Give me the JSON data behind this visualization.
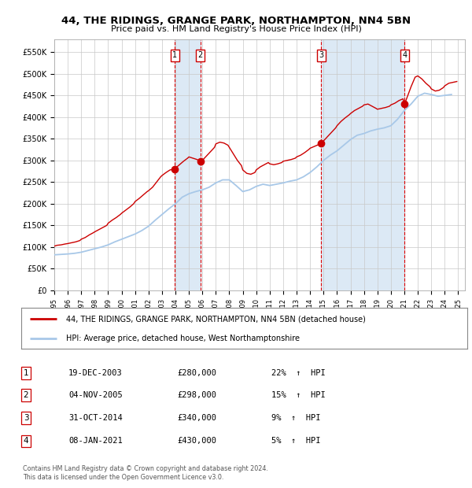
{
  "title": "44, THE RIDINGS, GRANGE PARK, NORTHAMPTON, NN4 5BN",
  "subtitle": "Price paid vs. HM Land Registry's House Price Index (HPI)",
  "hpi_color": "#a8c8e8",
  "price_color": "#cc0000",
  "marker_color": "#cc0000",
  "bg_color": "#ffffff",
  "grid_color": "#c8c8c8",
  "panel_color": "#dce9f5",
  "xlim_start": 1995.0,
  "xlim_end": 2025.5,
  "ylim_min": 0,
  "ylim_max": 580000,
  "yticks": [
    0,
    50000,
    100000,
    150000,
    200000,
    250000,
    300000,
    350000,
    400000,
    450000,
    500000,
    550000
  ],
  "ytick_labels": [
    "£0",
    "£50K",
    "£100K",
    "£150K",
    "£200K",
    "£250K",
    "£300K",
    "£350K",
    "£400K",
    "£450K",
    "£500K",
    "£550K"
  ],
  "transactions": [
    {
      "num": 1,
      "date_label": "19-DEC-2003",
      "x": 2003.96,
      "price": 280000,
      "pct": "22%",
      "direction": "↑"
    },
    {
      "num": 2,
      "date_label": "04-NOV-2005",
      "x": 2005.84,
      "price": 298000,
      "pct": "15%",
      "direction": "↑"
    },
    {
      "num": 3,
      "date_label": "31-OCT-2014",
      "x": 2014.83,
      "price": 340000,
      "pct": "9%",
      "direction": "↑"
    },
    {
      "num": 4,
      "date_label": "08-JAN-2021",
      "x": 2021.02,
      "price": 430000,
      "pct": "5%",
      "direction": "↑"
    }
  ],
  "legend_label_price": "44, THE RIDINGS, GRANGE PARK, NORTHAMPTON, NN4 5BN (detached house)",
  "legend_label_hpi": "HPI: Average price, detached house, West Northamptonshire",
  "footer1": "Contains HM Land Registry data © Crown copyright and database right 2024.",
  "footer2": "This data is licensed under the Open Government Licence v3.0.",
  "hpi_data": [
    [
      1995.0,
      82000
    ],
    [
      1995.5,
      83000
    ],
    [
      1996.0,
      84000
    ],
    [
      1996.5,
      85500
    ],
    [
      1997.0,
      88000
    ],
    [
      1997.5,
      92000
    ],
    [
      1998.0,
      96000
    ],
    [
      1998.5,
      100000
    ],
    [
      1999.0,
      105000
    ],
    [
      1999.5,
      112000
    ],
    [
      2000.0,
      118000
    ],
    [
      2000.5,
      124000
    ],
    [
      2001.0,
      130000
    ],
    [
      2001.5,
      138000
    ],
    [
      2002.0,
      148000
    ],
    [
      2002.5,
      162000
    ],
    [
      2003.0,
      175000
    ],
    [
      2003.5,
      188000
    ],
    [
      2004.0,
      200000
    ],
    [
      2004.5,
      215000
    ],
    [
      2005.0,
      223000
    ],
    [
      2005.5,
      228000
    ],
    [
      2006.0,
      232000
    ],
    [
      2006.5,
      238000
    ],
    [
      2007.0,
      248000
    ],
    [
      2007.5,
      255000
    ],
    [
      2008.0,
      255000
    ],
    [
      2008.5,
      242000
    ],
    [
      2009.0,
      228000
    ],
    [
      2009.5,
      232000
    ],
    [
      2010.0,
      240000
    ],
    [
      2010.5,
      245000
    ],
    [
      2011.0,
      242000
    ],
    [
      2011.5,
      245000
    ],
    [
      2012.0,
      248000
    ],
    [
      2012.5,
      252000
    ],
    [
      2013.0,
      255000
    ],
    [
      2013.5,
      262000
    ],
    [
      2014.0,
      272000
    ],
    [
      2014.5,
      285000
    ],
    [
      2015.0,
      300000
    ],
    [
      2015.5,
      312000
    ],
    [
      2016.0,
      322000
    ],
    [
      2016.5,
      335000
    ],
    [
      2017.0,
      348000
    ],
    [
      2017.5,
      358000
    ],
    [
      2018.0,
      362000
    ],
    [
      2018.5,
      368000
    ],
    [
      2019.0,
      372000
    ],
    [
      2019.5,
      375000
    ],
    [
      2020.0,
      380000
    ],
    [
      2020.5,
      395000
    ],
    [
      2021.0,
      415000
    ],
    [
      2021.5,
      430000
    ],
    [
      2022.0,
      448000
    ],
    [
      2022.5,
      455000
    ],
    [
      2023.0,
      452000
    ],
    [
      2023.5,
      448000
    ],
    [
      2024.0,
      450000
    ],
    [
      2024.5,
      452000
    ]
  ],
  "price_data": [
    [
      1995.0,
      102000
    ],
    [
      1995.2,
      104000
    ],
    [
      1995.5,
      105000
    ],
    [
      1995.8,
      107000
    ],
    [
      1996.0,
      108000
    ],
    [
      1996.3,
      110000
    ],
    [
      1996.6,
      112000
    ],
    [
      1996.9,
      115000
    ],
    [
      1997.0,
      118000
    ],
    [
      1997.3,
      122000
    ],
    [
      1997.6,
      128000
    ],
    [
      1997.9,
      133000
    ],
    [
      1998.0,
      135000
    ],
    [
      1998.3,
      140000
    ],
    [
      1998.6,
      145000
    ],
    [
      1998.9,
      150000
    ],
    [
      1999.0,
      155000
    ],
    [
      1999.3,
      162000
    ],
    [
      1999.6,
      168000
    ],
    [
      1999.9,
      175000
    ],
    [
      2000.0,
      178000
    ],
    [
      2000.3,
      185000
    ],
    [
      2000.6,
      192000
    ],
    [
      2000.9,
      200000
    ],
    [
      2001.0,
      205000
    ],
    [
      2001.3,
      212000
    ],
    [
      2001.6,
      220000
    ],
    [
      2001.9,
      228000
    ],
    [
      2002.0,
      230000
    ],
    [
      2002.3,
      238000
    ],
    [
      2002.6,
      250000
    ],
    [
      2002.9,
      262000
    ],
    [
      2003.0,
      265000
    ],
    [
      2003.3,
      272000
    ],
    [
      2003.6,
      278000
    ],
    [
      2003.96,
      280000
    ],
    [
      2004.0,
      282000
    ],
    [
      2004.3,
      290000
    ],
    [
      2004.6,
      298000
    ],
    [
      2004.9,
      305000
    ],
    [
      2005.0,
      308000
    ],
    [
      2005.3,
      305000
    ],
    [
      2005.6,
      302000
    ],
    [
      2005.84,
      298000
    ],
    [
      2006.0,
      300000
    ],
    [
      2006.3,
      310000
    ],
    [
      2006.6,
      320000
    ],
    [
      2006.9,
      330000
    ],
    [
      2007.0,
      338000
    ],
    [
      2007.3,
      342000
    ],
    [
      2007.6,
      340000
    ],
    [
      2007.9,
      335000
    ],
    [
      2008.0,
      330000
    ],
    [
      2008.3,
      315000
    ],
    [
      2008.6,
      300000
    ],
    [
      2008.9,
      288000
    ],
    [
      2009.0,
      278000
    ],
    [
      2009.3,
      270000
    ],
    [
      2009.6,
      268000
    ],
    [
      2009.9,
      272000
    ],
    [
      2010.0,
      278000
    ],
    [
      2010.3,
      285000
    ],
    [
      2010.6,
      290000
    ],
    [
      2010.9,
      295000
    ],
    [
      2011.0,
      292000
    ],
    [
      2011.3,
      290000
    ],
    [
      2011.6,
      292000
    ],
    [
      2011.9,
      295000
    ],
    [
      2012.0,
      298000
    ],
    [
      2012.3,
      300000
    ],
    [
      2012.6,
      302000
    ],
    [
      2012.9,
      305000
    ],
    [
      2013.0,
      308000
    ],
    [
      2013.3,
      312000
    ],
    [
      2013.6,
      318000
    ],
    [
      2013.9,
      325000
    ],
    [
      2014.0,
      328000
    ],
    [
      2014.3,
      332000
    ],
    [
      2014.6,
      336000
    ],
    [
      2014.83,
      340000
    ],
    [
      2015.0,
      345000
    ],
    [
      2015.3,
      355000
    ],
    [
      2015.6,
      365000
    ],
    [
      2015.9,
      375000
    ],
    [
      2016.0,
      380000
    ],
    [
      2016.3,
      390000
    ],
    [
      2016.6,
      398000
    ],
    [
      2016.9,
      405000
    ],
    [
      2017.0,
      408000
    ],
    [
      2017.3,
      415000
    ],
    [
      2017.6,
      420000
    ],
    [
      2017.9,
      425000
    ],
    [
      2018.0,
      428000
    ],
    [
      2018.3,
      430000
    ],
    [
      2018.6,
      425000
    ],
    [
      2018.9,
      420000
    ],
    [
      2019.0,
      418000
    ],
    [
      2019.3,
      420000
    ],
    [
      2019.6,
      422000
    ],
    [
      2019.9,
      425000
    ],
    [
      2020.0,
      428000
    ],
    [
      2020.3,
      432000
    ],
    [
      2020.6,
      438000
    ],
    [
      2020.9,
      442000
    ],
    [
      2021.02,
      430000
    ],
    [
      2021.2,
      445000
    ],
    [
      2021.5,
      470000
    ],
    [
      2021.8,
      492000
    ],
    [
      2022.0,
      495000
    ],
    [
      2022.3,
      488000
    ],
    [
      2022.6,
      478000
    ],
    [
      2022.9,
      470000
    ],
    [
      2023.0,
      465000
    ],
    [
      2023.3,
      460000
    ],
    [
      2023.6,
      462000
    ],
    [
      2023.9,
      468000
    ],
    [
      2024.0,
      472000
    ],
    [
      2024.3,
      478000
    ],
    [
      2024.6,
      480000
    ],
    [
      2024.9,
      482000
    ]
  ]
}
